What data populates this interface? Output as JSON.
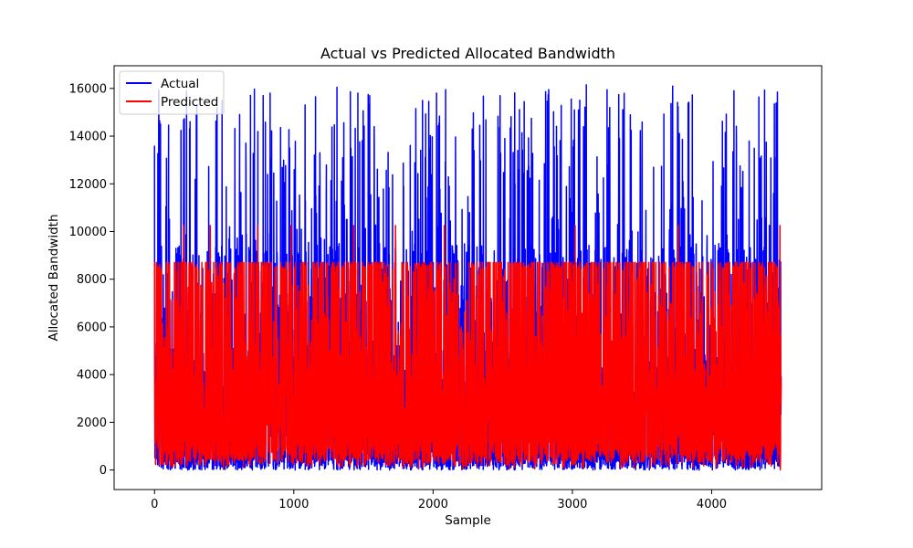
{
  "chart_data": {
    "type": "line",
    "title": "Actual vs Predicted Allocated Bandwidth",
    "xlabel": "Sample",
    "ylabel": "Allocated Bandwidth",
    "xlim": [
      -290,
      4790
    ],
    "ylim": [
      -820,
      16950
    ],
    "xticks": [
      0,
      1000,
      2000,
      3000,
      4000
    ],
    "xtick_labels": [
      "0",
      "1000",
      "2000",
      "3000",
      "4000"
    ],
    "yticks": [
      0,
      2000,
      4000,
      6000,
      8000,
      10000,
      12000,
      14000,
      16000
    ],
    "ytick_labels": [
      "0",
      "2000",
      "4000",
      "6000",
      "8000",
      "10000",
      "12000",
      "14000",
      "16000"
    ],
    "grid": false,
    "legend": "upper-left",
    "sample_count": 4500,
    "series": [
      {
        "name": "Actual",
        "color": "#0000ff",
        "range": [
          0,
          16200
        ],
        "notable_peaks": [
          {
            "x": 0,
            "y": 13600
          },
          {
            "x": 30,
            "y": 15800
          },
          {
            "x": 230,
            "y": 15900
          },
          {
            "x": 780,
            "y": 15700
          },
          {
            "x": 1310,
            "y": 16050
          },
          {
            "x": 1460,
            "y": 15800
          },
          {
            "x": 2090,
            "y": 15950
          },
          {
            "x": 2830,
            "y": 15950
          },
          {
            "x": 3100,
            "y": 16150
          },
          {
            "x": 3720,
            "y": 16100
          },
          {
            "x": 4160,
            "y": 15900
          },
          {
            "x": 4450,
            "y": 15350
          }
        ]
      },
      {
        "name": "Predicted",
        "color": "#ff0000",
        "range": [
          0,
          10250
        ],
        "typical_peak": 8700,
        "notable_peaks": [
          {
            "x": 210,
            "y": 10250
          },
          {
            "x": 400,
            "y": 10250
          },
          {
            "x": 740,
            "y": 10250
          },
          {
            "x": 980,
            "y": 10250
          },
          {
            "x": 1430,
            "y": 10250
          },
          {
            "x": 1730,
            "y": 10250
          },
          {
            "x": 2080,
            "y": 10250
          },
          {
            "x": 3020,
            "y": 10250
          },
          {
            "x": 3760,
            "y": 10250
          },
          {
            "x": 4490,
            "y": 10250
          }
        ]
      }
    ]
  }
}
